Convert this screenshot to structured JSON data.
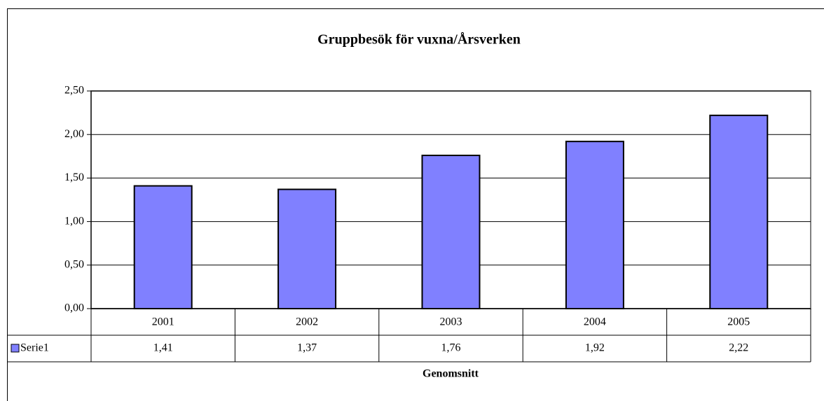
{
  "chart_data": {
    "type": "bar",
    "title": "Gruppbesök för vuxna/Årsverken",
    "x_label": "Genomsnitt",
    "categories": [
      "2001",
      "2002",
      "2003",
      "2004",
      "2005"
    ],
    "series": [
      {
        "name": "Serie1",
        "color": "#8080ff",
        "values": [
          1.41,
          1.37,
          1.76,
          1.92,
          2.22
        ],
        "value_labels": [
          "1,41",
          "1,37",
          "1,76",
          "1,92",
          "2,22"
        ]
      }
    ],
    "ylim": [
      0,
      2.5
    ],
    "yticks": [
      {
        "value": 0,
        "label": "0,00"
      },
      {
        "value": 0.5,
        "label": "0,50"
      },
      {
        "value": 1,
        "label": "1,00"
      },
      {
        "value": 1.5,
        "label": "1,50"
      },
      {
        "value": 2,
        "label": "2,00"
      },
      {
        "value": 2.5,
        "label": "2,50"
      }
    ],
    "grid": true
  }
}
